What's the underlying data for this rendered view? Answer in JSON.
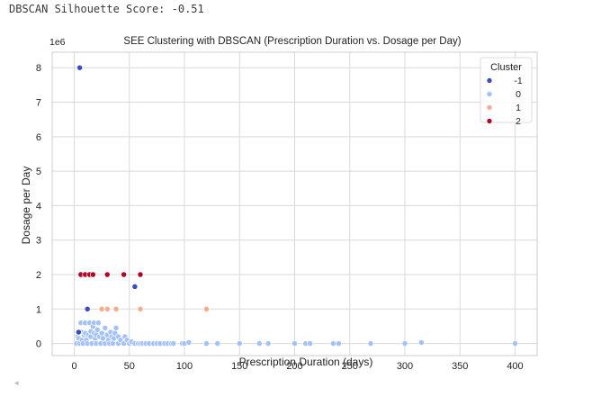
{
  "output": {
    "silhouette_text": "DBSCAN Silhouette Score: -0.51"
  },
  "scroll": {
    "left_arrow": "◂"
  },
  "chart_data": {
    "type": "scatter",
    "title": "SEE Clustering with DBSCAN (Prescription Duration vs. Dosage per Day)",
    "xlabel": "Prescription Duration (days)",
    "ylabel": "Dosage per Day",
    "y_offset_text": "1e6",
    "xlim": [
      -20,
      420
    ],
    "ylim": [
      -350000,
      8450000
    ],
    "xticks": [
      0,
      50,
      100,
      150,
      200,
      250,
      300,
      350,
      400
    ],
    "xtick_labels": [
      "0",
      "50",
      "100",
      "150",
      "200",
      "250",
      "300",
      "350",
      "400"
    ],
    "yticks": [
      0,
      1000000,
      2000000,
      3000000,
      4000000,
      5000000,
      6000000,
      7000000,
      8000000
    ],
    "ytick_labels": [
      "0",
      "1",
      "2",
      "3",
      "4",
      "5",
      "6",
      "7",
      "8"
    ],
    "grid": true,
    "legend": {
      "title": "Cluster",
      "position": "top-right"
    },
    "series": [
      {
        "name": "-1",
        "color": "#3b4cc0",
        "points": [
          [
            5,
            8000000
          ],
          [
            55,
            1650000
          ],
          [
            12,
            1000000
          ],
          [
            4,
            330000
          ]
        ]
      },
      {
        "name": "0",
        "color": "#a3c2fb",
        "points": [
          [
            2,
            0
          ],
          [
            3,
            200000
          ],
          [
            4,
            150000
          ],
          [
            5,
            0
          ],
          [
            6,
            600000
          ],
          [
            7,
            330000
          ],
          [
            7,
            100000
          ],
          [
            8,
            0
          ],
          [
            9,
            250000
          ],
          [
            10,
            600000
          ],
          [
            10,
            300000
          ],
          [
            11,
            100000
          ],
          [
            12,
            0
          ],
          [
            13,
            250000
          ],
          [
            14,
            600000
          ],
          [
            15,
            350000
          ],
          [
            15,
            200000
          ],
          [
            16,
            0
          ],
          [
            17,
            500000
          ],
          [
            18,
            300000
          ],
          [
            18,
            600000
          ],
          [
            19,
            150000
          ],
          [
            20,
            0
          ],
          [
            20,
            250000
          ],
          [
            21,
            400000
          ],
          [
            22,
            600000
          ],
          [
            23,
            200000
          ],
          [
            24,
            0
          ],
          [
            25,
            300000
          ],
          [
            26,
            150000
          ],
          [
            28,
            0
          ],
          [
            28,
            450000
          ],
          [
            30,
            250000
          ],
          [
            31,
            100000
          ],
          [
            32,
            0
          ],
          [
            33,
            330000
          ],
          [
            34,
            200000
          ],
          [
            35,
            0
          ],
          [
            36,
            150000
          ],
          [
            37,
            300000
          ],
          [
            38,
            450000
          ],
          [
            40,
            0
          ],
          [
            40,
            200000
          ],
          [
            42,
            100000
          ],
          [
            45,
            0
          ],
          [
            46,
            200000
          ],
          [
            48,
            100000
          ],
          [
            50,
            0
          ],
          [
            52,
            50000
          ],
          [
            55,
            0
          ],
          [
            58,
            0
          ],
          [
            60,
            0
          ],
          [
            62,
            0
          ],
          [
            65,
            0
          ],
          [
            68,
            0
          ],
          [
            72,
            0
          ],
          [
            75,
            0
          ],
          [
            78,
            0
          ],
          [
            82,
            0
          ],
          [
            85,
            0
          ],
          [
            88,
            0
          ],
          [
            90,
            0
          ],
          [
            98,
            0
          ],
          [
            100,
            0
          ],
          [
            104,
            30000
          ],
          [
            120,
            0
          ],
          [
            130,
            0
          ],
          [
            150,
            0
          ],
          [
            168,
            0
          ],
          [
            176,
            0
          ],
          [
            200,
            0
          ],
          [
            210,
            0
          ],
          [
            214,
            0
          ],
          [
            235,
            0
          ],
          [
            240,
            0
          ],
          [
            269,
            0
          ],
          [
            300,
            0
          ],
          [
            315,
            30000
          ],
          [
            400,
            0
          ]
        ]
      },
      {
        "name": "1",
        "color": "#f7ac8e",
        "points": [
          [
            25,
            1000000
          ],
          [
            30,
            1000000
          ],
          [
            38,
            1000000
          ],
          [
            60,
            1000000
          ],
          [
            120,
            1000000
          ]
        ]
      },
      {
        "name": "2",
        "color": "#b40426",
        "points": [
          [
            6,
            2000000
          ],
          [
            10,
            2000000
          ],
          [
            14,
            2000000
          ],
          [
            17,
            2000000
          ],
          [
            30,
            2000000
          ],
          [
            45,
            2000000
          ],
          [
            60,
            2000000
          ]
        ]
      }
    ]
  }
}
